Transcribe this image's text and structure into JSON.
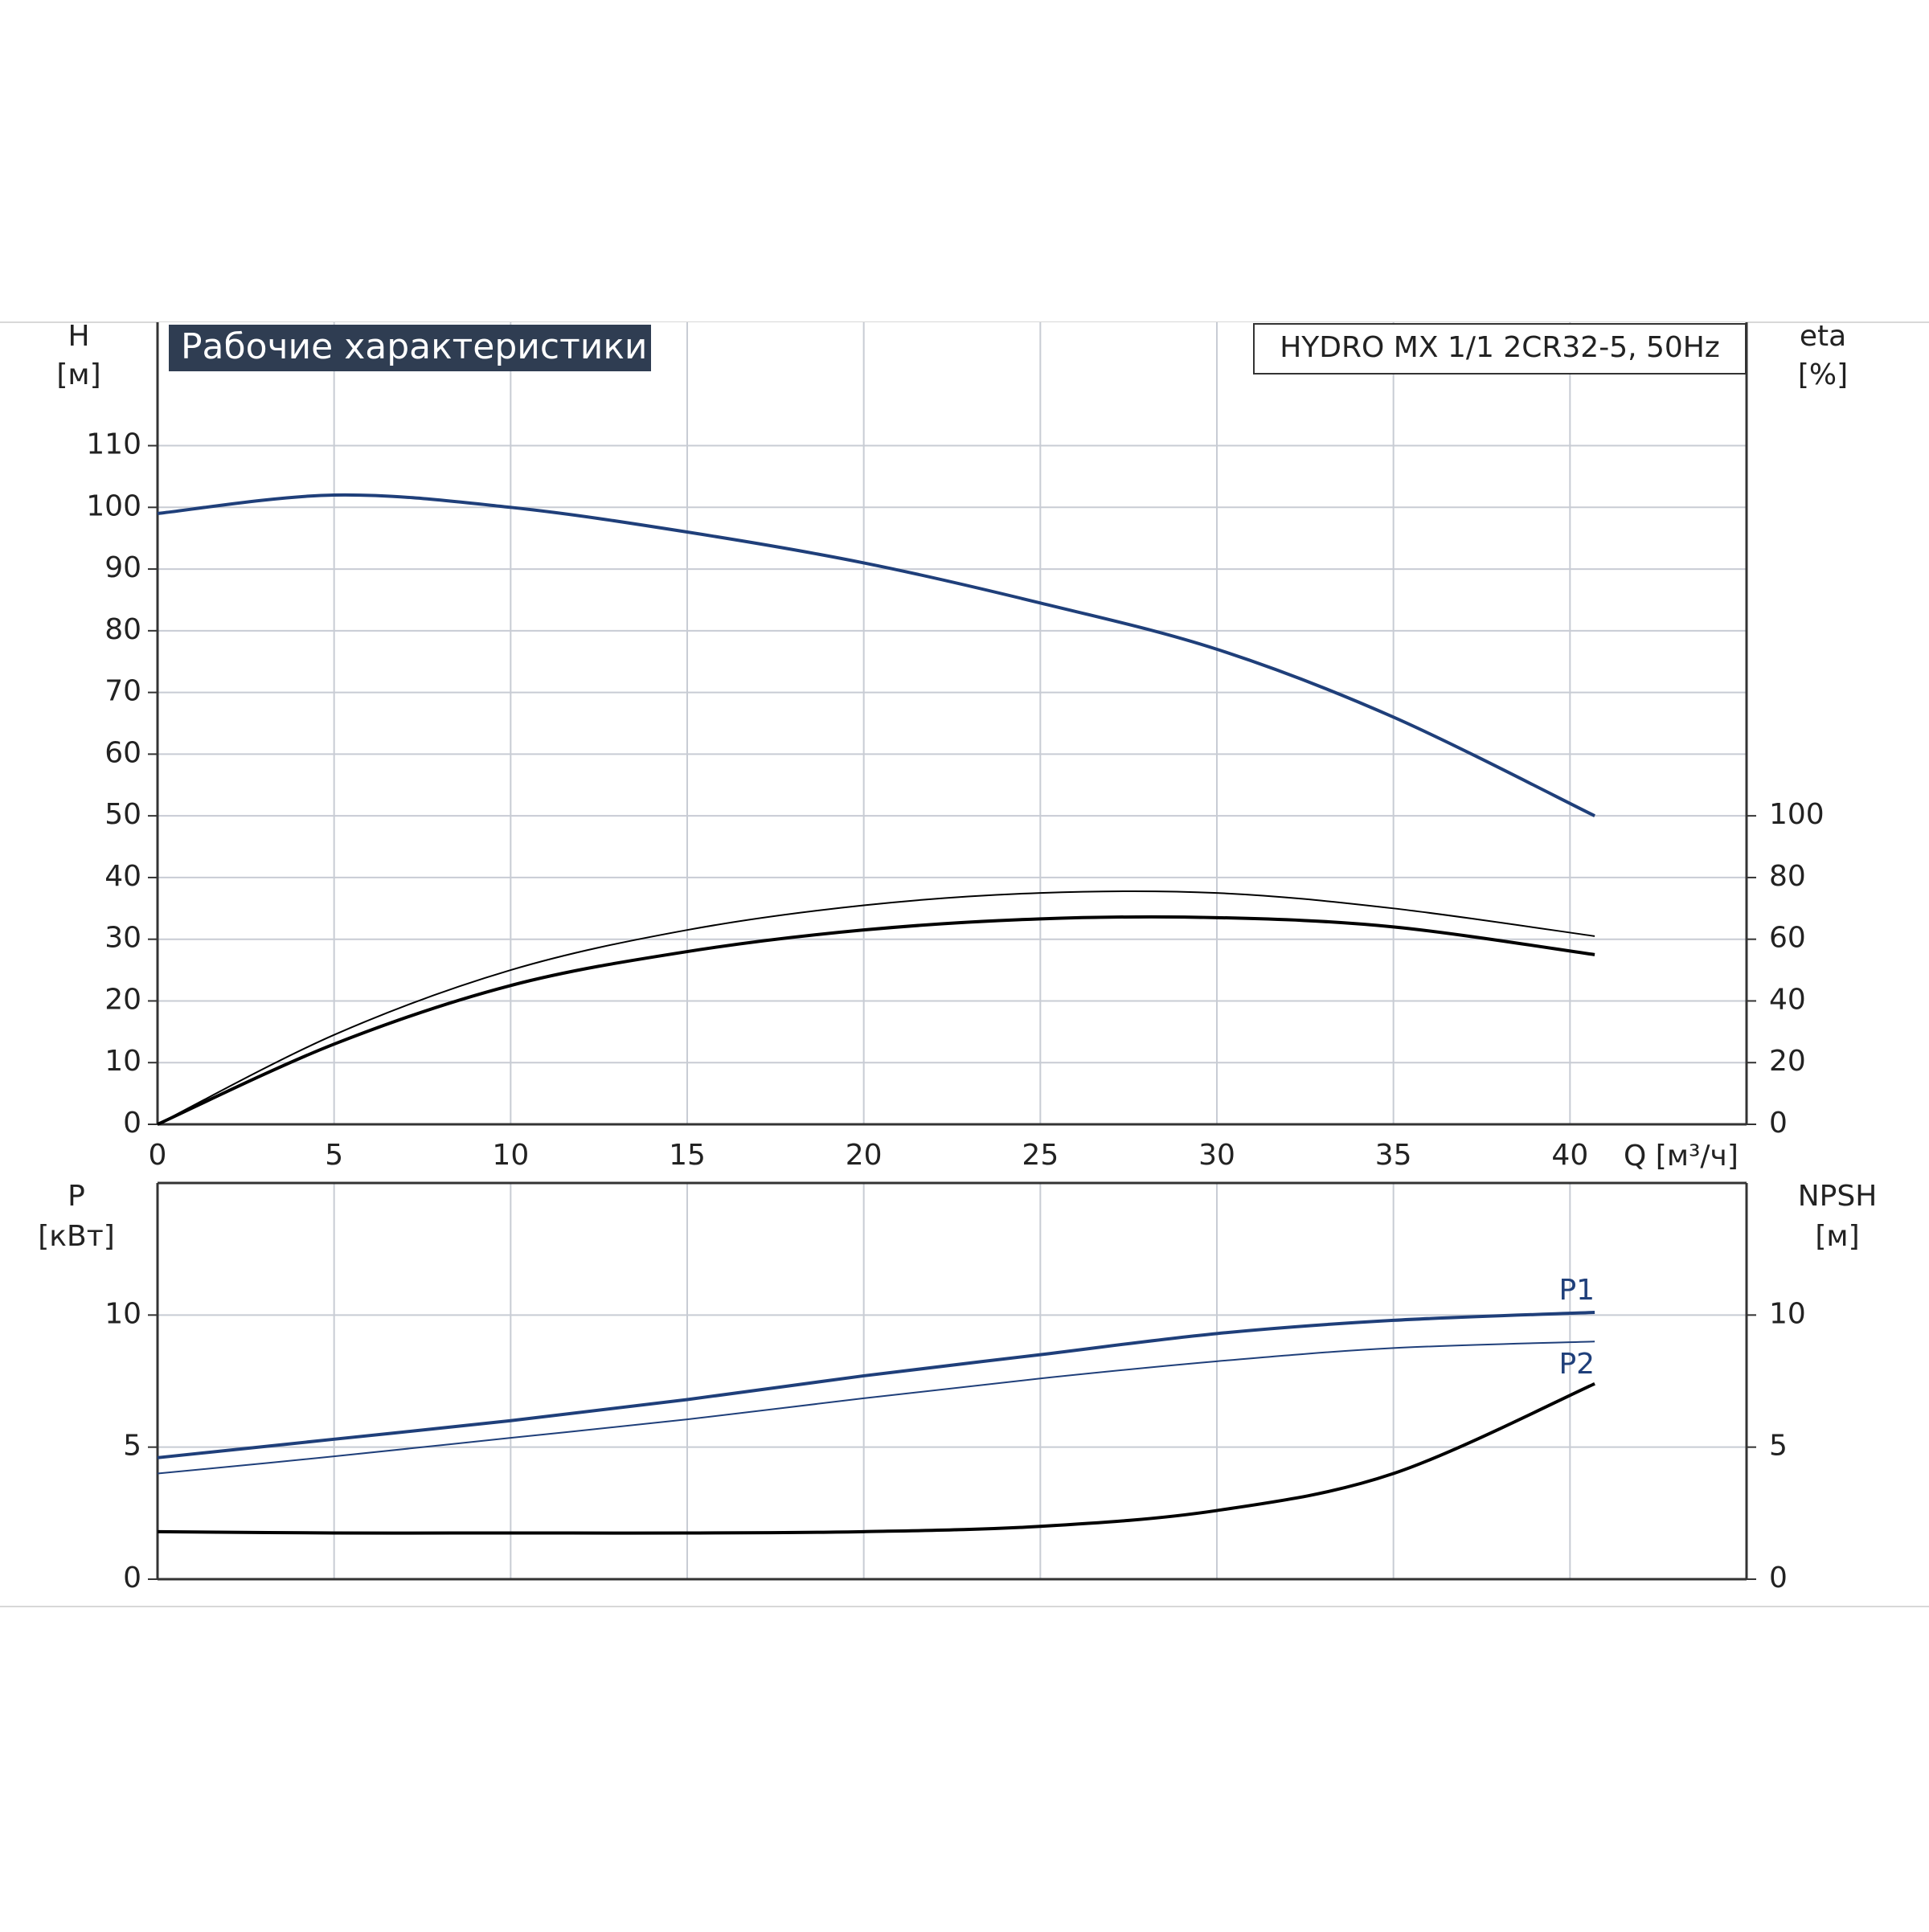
{
  "chart_data": [
    {
      "type": "line",
      "title": "Рабочие характеристики",
      "subtitle": "HYDRO MX 1/1 2CR32-5, 50Hz",
      "x_label": "Q [м³/ч]",
      "y_label": "H",
      "y_unit": "[м]",
      "y2_label": "eta",
      "y2_unit": "[%]",
      "x": [
        0,
        5,
        10,
        15,
        20,
        25,
        30,
        35,
        40.7
      ],
      "xlim": [
        0,
        45
      ],
      "xticks": [
        0,
        5,
        10,
        15,
        20,
        25,
        30,
        35,
        40
      ],
      "ylim": [
        0,
        130
      ],
      "yticks": [
        0,
        10,
        20,
        30,
        40,
        50,
        60,
        70,
        80,
        90,
        100,
        110
      ],
      "y2lim": [
        0,
        260
      ],
      "y2ticks": [
        0,
        20,
        40,
        60,
        80,
        100
      ],
      "grid": true,
      "series": [
        {
          "color": "#1f3f7a",
          "line_width": 4,
          "values": [
            99,
            102,
            100,
            96,
            91,
            84.5,
            77,
            66,
            50
          ]
        },
        {
          "color": "#000000",
          "line_width": 2,
          "axis": "y2",
          "values": [
            0,
            29,
            50,
            63,
            71,
            75,
            75,
            70,
            61
          ]
        },
        {
          "color": "#000000",
          "line_width": 4,
          "axis": "y2",
          "values": [
            0,
            26,
            45,
            56,
            63,
            66.6,
            67,
            64,
            55
          ]
        }
      ]
    },
    {
      "type": "line",
      "y_label": "P",
      "y_unit": "[кВт]",
      "y2_label": "NPSH",
      "y2_unit": "[м]",
      "x": [
        0,
        5,
        10,
        15,
        20,
        25,
        30,
        35,
        40.7
      ],
      "xlim": [
        0,
        45
      ],
      "ylim": [
        0,
        15
      ],
      "yticks": [
        0,
        5,
        10
      ],
      "y2lim": [
        0,
        15
      ],
      "y2ticks": [
        0,
        5,
        10
      ],
      "grid": true,
      "series": [
        {
          "name": "P1",
          "color": "#1f3f7a",
          "line_width": 4,
          "values": [
            4.6,
            5.3,
            6.0,
            6.8,
            7.7,
            8.5,
            9.3,
            9.8,
            10.1
          ]
        },
        {
          "name": "P2",
          "color": "#1f3f7a",
          "line_width": 2,
          "values": [
            4.0,
            4.65,
            5.35,
            6.05,
            6.85,
            7.6,
            8.25,
            8.75,
            9.0
          ]
        },
        {
          "color": "#000000",
          "line_width": 4,
          "axis": "y2",
          "values": [
            1.8,
            1.75,
            1.75,
            1.75,
            1.8,
            2.0,
            2.6,
            4.0,
            7.4
          ]
        }
      ]
    }
  ]
}
